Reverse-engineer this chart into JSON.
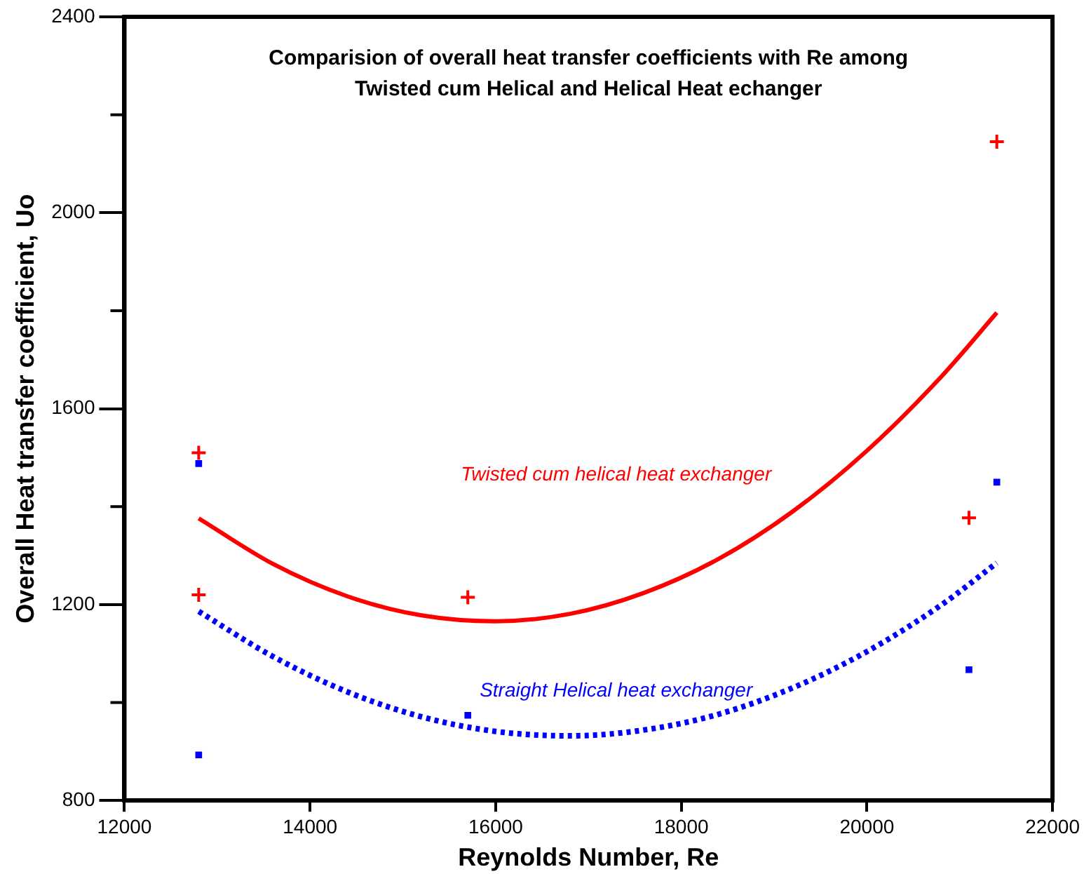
{
  "chart_data": {
    "type": "scatter",
    "title": "Comparision of overall heat transfer coefficients with Re among\nTwisted cum Helical and Helical Heat echanger",
    "xlabel": "Reynolds Number, Re",
    "ylabel": "Overall Heat transfer coefficient, Uo",
    "xlim": [
      12000,
      22000
    ],
    "xticks": [
      12000,
      14000,
      16000,
      18000,
      20000,
      22000
    ],
    "ylim": [
      800,
      2400
    ],
    "yticks": [
      800,
      {
        "value": 1000,
        "label": null
      },
      1200,
      {
        "value": 1400,
        "label": null
      },
      1600,
      {
        "value": 1800,
        "label": null
      },
      2000,
      {
        "value": 2200,
        "label": null
      },
      2400
    ],
    "grid": false,
    "legend": false,
    "series": [
      {
        "type": "scatter",
        "color": "#ff0000",
        "marker": "cross",
        "x": [
          12800,
          12800,
          15700,
          21100,
          21400
        ],
        "values": [
          1510,
          1220,
          1215,
          1377,
          2145
        ]
      },
      {
        "type": "scatter",
        "color": "#0000ff",
        "marker": "square",
        "x": [
          12800,
          12800,
          15700,
          21100,
          21400
        ],
        "values": [
          1488,
          893,
          974,
          1067,
          1450
        ]
      },
      {
        "type": "line",
        "name": "Twisted cum helical heat exchanger",
        "color": "#ff0000",
        "line_style": "solid",
        "marker": "none",
        "x": [
          12800,
          13600,
          14400,
          15200,
          16000,
          16800,
          17600,
          18400,
          19200,
          20000,
          20800,
          21400
        ],
        "values": [
          1376,
          1283,
          1217,
          1178,
          1166,
          1181,
          1224,
          1293,
          1390,
          1514,
          1665,
          1796
        ]
      },
      {
        "type": "line",
        "name": "Straight Helical heat exchanger",
        "color": "#0000ff",
        "line_style": "dotted",
        "marker": "none",
        "x": [
          12800,
          13600,
          14400,
          15200,
          16000,
          16800,
          17600,
          18400,
          19200,
          20000,
          20800,
          21400
        ],
        "values": [
          1186,
          1094,
          1022,
          971,
          941,
          932,
          944,
          976,
          1030,
          1104,
          1199,
          1285
        ]
      }
    ]
  }
}
